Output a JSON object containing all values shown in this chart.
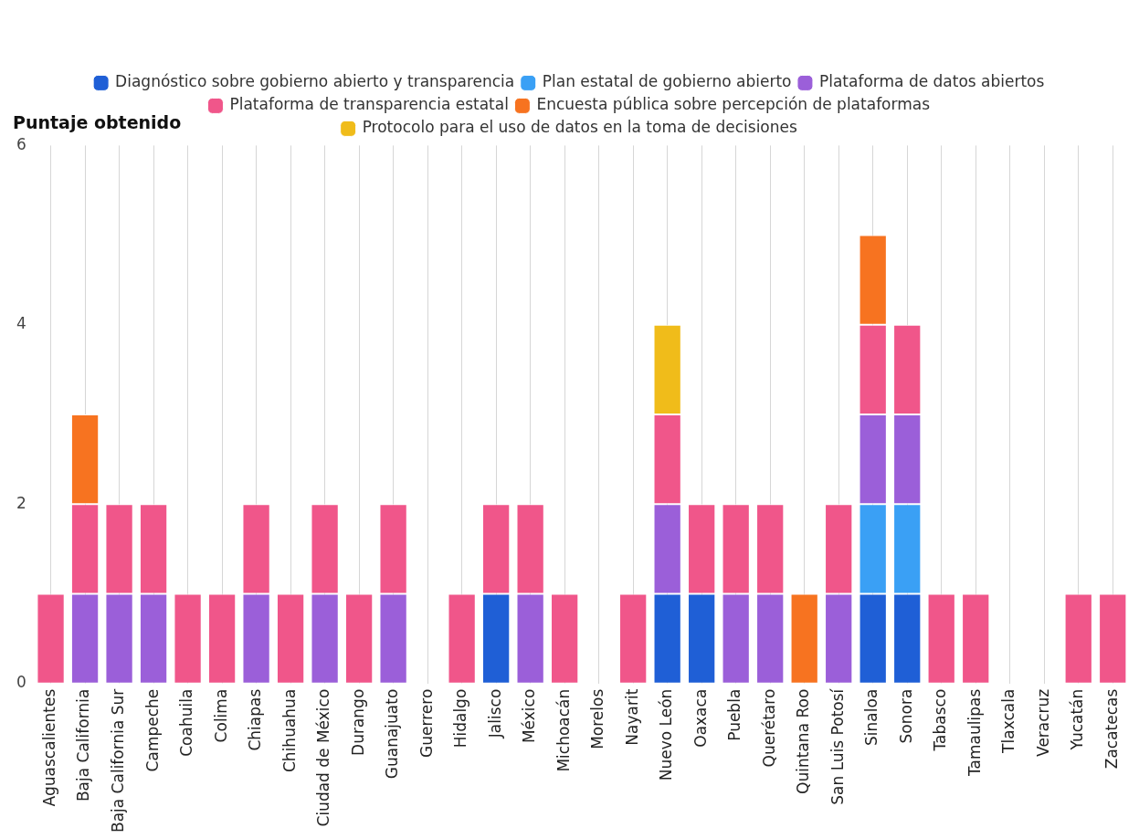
{
  "chart_data": {
    "type": "bar",
    "stacked": true,
    "ylabel": "Puntaje obtenido",
    "legend": "top",
    "grid": "x",
    "ylim": [
      0,
      6
    ],
    "yticks": [
      0,
      2,
      4,
      6
    ],
    "categories": [
      "Aguascalientes",
      "Baja California",
      "Baja California Sur",
      "Campeche",
      "Coahuila",
      "Colima",
      "Chiapas",
      "Chihuahua",
      "Ciudad de México",
      "Durango",
      "Guanajuato",
      "Guerrero",
      "Hidalgo",
      "Jalisco",
      "México",
      "Michoacán",
      "Morelos",
      "Nayarit",
      "Nuevo León",
      "Oaxaca",
      "Puebla",
      "Querétaro",
      "Quintana Roo",
      "San Luis Potosí",
      "Sinaloa",
      "Sonora",
      "Tabasco",
      "Tamaulipas",
      "Tlaxcala",
      "Veracruz",
      "Yucatán",
      "Zacatecas"
    ],
    "series": [
      {
        "name": "Diagnóstico sobre gobierno abierto y transparencia",
        "color": "#1f5fd6",
        "values": [
          null,
          null,
          null,
          null,
          null,
          null,
          null,
          null,
          null,
          null,
          null,
          null,
          null,
          1,
          null,
          null,
          null,
          null,
          1,
          1,
          null,
          null,
          null,
          null,
          1,
          1,
          null,
          null,
          null,
          null,
          null,
          null
        ]
      },
      {
        "name": "Plan estatal de gobierno abierto",
        "color": "#3aa0f5",
        "values": [
          null,
          null,
          null,
          null,
          null,
          null,
          null,
          null,
          null,
          null,
          null,
          null,
          null,
          null,
          null,
          null,
          null,
          null,
          null,
          null,
          null,
          null,
          null,
          null,
          1,
          1,
          null,
          null,
          null,
          null,
          null,
          null
        ]
      },
      {
        "name": "Plataforma de datos abiertos",
        "color": "#9b5fd9",
        "values": [
          null,
          1,
          1,
          1,
          null,
          null,
          1,
          null,
          1,
          null,
          1,
          null,
          null,
          null,
          1,
          null,
          null,
          null,
          1,
          null,
          1,
          1,
          null,
          1,
          1,
          1,
          null,
          null,
          null,
          null,
          null,
          null
        ]
      },
      {
        "name": "Plataforma de transparencia estatal",
        "color": "#f0568a",
        "values": [
          1,
          1,
          1,
          1,
          1,
          1,
          1,
          1,
          1,
          1,
          1,
          null,
          1,
          1,
          1,
          1,
          null,
          1,
          1,
          1,
          1,
          1,
          null,
          1,
          1,
          1,
          1,
          1,
          null,
          null,
          1,
          1
        ]
      },
      {
        "name": "Encuesta pública sobre percepción de plataformas",
        "color": "#f77320",
        "values": [
          null,
          1,
          null,
          null,
          null,
          null,
          null,
          null,
          null,
          null,
          null,
          null,
          null,
          null,
          null,
          null,
          null,
          null,
          null,
          null,
          null,
          null,
          1,
          null,
          1,
          null,
          null,
          null,
          null,
          null,
          null,
          null
        ]
      },
      {
        "name": "Protocolo para el uso de datos en la toma de decisiones",
        "color": "#f0bc1a",
        "values": [
          null,
          null,
          null,
          null,
          null,
          null,
          null,
          null,
          null,
          null,
          null,
          null,
          null,
          null,
          null,
          null,
          null,
          null,
          1,
          null,
          null,
          null,
          null,
          null,
          null,
          null,
          null,
          null,
          null,
          null,
          null,
          null
        ]
      }
    ]
  }
}
